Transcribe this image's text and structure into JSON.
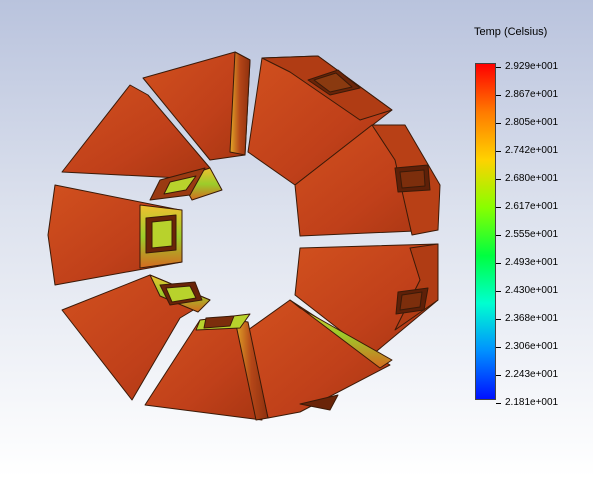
{
  "legend": {
    "title": "Temp (Celsius)",
    "ticks": [
      "2.929e+001",
      "2.867e+001",
      "2.805e+001",
      "2.742e+001",
      "2.680e+001",
      "2.617e+001",
      "2.555e+001",
      "2.493e+001",
      "2.430e+001",
      "2.368e+001",
      "2.306e+001",
      "2.243e+001",
      "2.181e+001"
    ],
    "gradient_stops": [
      "#ff0000",
      "#ff7a00",
      "#ffd200",
      "#88ff00",
      "#00ff40",
      "#00ffd0",
      "#0090ff",
      "#0010ff"
    ]
  },
  "model": {
    "description_colors": {
      "face_main": "#c8461a",
      "face_dark": "#a83a12",
      "face_shadow": "#8a2e0c",
      "edge_hot": "#e0a020",
      "edge_green": "#9ccc2a",
      "outline": "#3a1a08"
    }
  }
}
